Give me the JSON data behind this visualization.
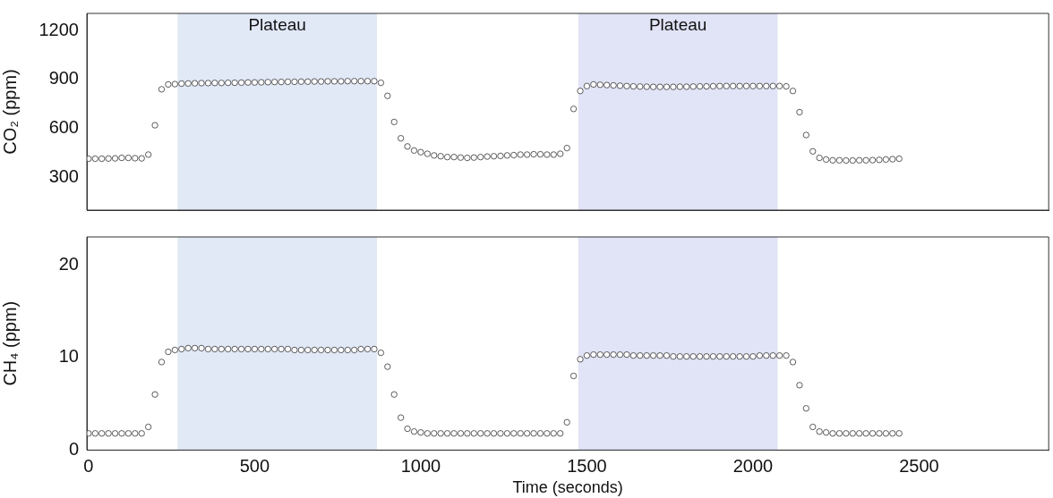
{
  "chart_data": [
    {
      "type": "scatter",
      "ylabel": "CO₂ (ppm)",
      "marker": "circle",
      "grid": false,
      "legend": false,
      "tick_labels": "y",
      "x": [
        0,
        20,
        40,
        60,
        80,
        100,
        120,
        140,
        160,
        180,
        200,
        220,
        240,
        260,
        280,
        300,
        320,
        340,
        360,
        380,
        400,
        420,
        440,
        460,
        480,
        500,
        520,
        540,
        560,
        580,
        600,
        620,
        640,
        660,
        680,
        700,
        720,
        740,
        760,
        780,
        800,
        820,
        840,
        860,
        880,
        900,
        920,
        940,
        960,
        980,
        1000,
        1020,
        1040,
        1060,
        1080,
        1100,
        1120,
        1140,
        1160,
        1180,
        1200,
        1220,
        1240,
        1260,
        1280,
        1300,
        1320,
        1340,
        1360,
        1380,
        1400,
        1420,
        1440,
        1460,
        1480,
        1500,
        1520,
        1540,
        1560,
        1580,
        1600,
        1620,
        1640,
        1660,
        1680,
        1700,
        1720,
        1740,
        1760,
        1780,
        1800,
        1820,
        1840,
        1860,
        1880,
        1900,
        1920,
        1940,
        1960,
        1980,
        2000,
        2020,
        2040,
        2060,
        2080,
        2100,
        2120,
        2140,
        2160,
        2180,
        2200,
        2220,
        2240,
        2260,
        2280,
        2300,
        2320,
        2340,
        2360,
        2380,
        2400,
        2420,
        2440
      ],
      "xlim": [
        -5,
        2890
      ],
      "xticks": [
        0,
        500,
        1000,
        1500,
        2000,
        2500
      ],
      "ylim": [
        100,
        1305
      ],
      "yticks": [
        300,
        600,
        900,
        1200
      ],
      "series": [
        {
          "color": "#333333",
          "values": [
            415,
            415,
            415,
            416,
            417,
            420,
            420,
            418,
            417,
            440,
            620,
            840,
            870,
            872,
            875,
            876,
            877,
            878,
            878,
            879,
            879,
            880,
            880,
            881,
            882,
            882,
            883,
            884,
            885,
            885,
            886,
            886,
            887,
            887,
            888,
            888,
            889,
            889,
            889,
            890,
            890,
            890,
            890,
            890,
            880,
            800,
            640,
            540,
            490,
            465,
            455,
            445,
            435,
            430,
            425,
            425,
            422,
            420,
            422,
            425,
            428,
            430,
            432,
            435,
            437,
            440,
            440,
            442,
            442,
            440,
            440,
            445,
            480,
            720,
            830,
            860,
            870,
            868,
            866,
            864,
            862,
            860,
            858,
            857,
            856,
            855,
            855,
            855,
            855,
            856,
            856,
            857,
            858,
            858,
            859,
            860,
            860,
            860,
            860,
            860,
            860,
            860,
            860,
            860,
            860,
            858,
            830,
            700,
            560,
            460,
            420,
            410,
            405,
            405,
            404,
            404,
            405,
            405,
            406,
            408,
            410,
            412,
            415
          ]
        }
      ],
      "bands": [
        {
          "axis": "x",
          "from": 268,
          "to": 868,
          "label": "Plateau",
          "color": "#e1e8f6"
        },
        {
          "axis": "x",
          "from": 1474,
          "to": 2074,
          "label": "Plateau",
          "color": "#e1e3f6"
        }
      ]
    },
    {
      "type": "scatter",
      "xlabel": "Time (seconds)",
      "ylabel": "CH₄ (ppm)",
      "marker": "circle",
      "grid": false,
      "legend": false,
      "x": [
        0,
        20,
        40,
        60,
        80,
        100,
        120,
        140,
        160,
        180,
        200,
        220,
        240,
        260,
        280,
        300,
        320,
        340,
        360,
        380,
        400,
        420,
        440,
        460,
        480,
        500,
        520,
        540,
        560,
        580,
        600,
        620,
        640,
        660,
        680,
        700,
        720,
        740,
        760,
        780,
        800,
        820,
        840,
        860,
        880,
        900,
        920,
        940,
        960,
        980,
        1000,
        1020,
        1040,
        1060,
        1080,
        1100,
        1120,
        1140,
        1160,
        1180,
        1200,
        1220,
        1240,
        1260,
        1280,
        1300,
        1320,
        1340,
        1360,
        1380,
        1400,
        1420,
        1440,
        1460,
        1480,
        1500,
        1520,
        1540,
        1560,
        1580,
        1600,
        1620,
        1640,
        1660,
        1680,
        1700,
        1720,
        1740,
        1760,
        1780,
        1800,
        1820,
        1840,
        1860,
        1880,
        1900,
        1920,
        1940,
        1960,
        1980,
        2000,
        2020,
        2040,
        2060,
        2080,
        2100,
        2120,
        2140,
        2160,
        2180,
        2200,
        2220,
        2240,
        2260,
        2280,
        2300,
        2320,
        2340,
        2360,
        2380,
        2400,
        2420,
        2440
      ],
      "xlim": [
        -5,
        2890
      ],
      "xticks": [
        0,
        500,
        1000,
        1500,
        2000,
        2500
      ],
      "ylim": [
        0,
        23
      ],
      "yticks": [
        0,
        10,
        20
      ],
      "series": [
        {
          "color": "#333333",
          "values": [
            1.8,
            1.8,
            1.8,
            1.8,
            1.8,
            1.8,
            1.8,
            1.8,
            1.8,
            2.5,
            6,
            9.5,
            10.6,
            10.8,
            10.9,
            11,
            11,
            11,
            10.9,
            10.9,
            10.9,
            10.9,
            10.9,
            10.9,
            10.9,
            10.9,
            10.9,
            10.9,
            10.9,
            10.9,
            10.9,
            10.8,
            10.8,
            10.8,
            10.8,
            10.8,
            10.8,
            10.8,
            10.8,
            10.8,
            10.8,
            10.9,
            10.9,
            10.9,
            10.5,
            9,
            6,
            3.5,
            2.3,
            2,
            1.9,
            1.8,
            1.8,
            1.8,
            1.8,
            1.8,
            1.8,
            1.8,
            1.8,
            1.8,
            1.8,
            1.8,
            1.8,
            1.8,
            1.8,
            1.8,
            1.8,
            1.8,
            1.8,
            1.8,
            1.8,
            1.8,
            3,
            8,
            9.8,
            10.2,
            10.3,
            10.3,
            10.3,
            10.3,
            10.3,
            10.3,
            10.2,
            10.2,
            10.2,
            10.2,
            10.2,
            10.2,
            10.1,
            10.1,
            10.1,
            10.1,
            10.1,
            10.1,
            10.1,
            10.1,
            10.1,
            10.1,
            10.1,
            10.1,
            10.1,
            10.2,
            10.2,
            10.2,
            10.2,
            10.2,
            9.5,
            7,
            4.5,
            2.5,
            2,
            1.9,
            1.8,
            1.8,
            1.8,
            1.8,
            1.8,
            1.8,
            1.8,
            1.8,
            1.8,
            1.8,
            1.8
          ]
        }
      ],
      "bands": [
        {
          "axis": "x",
          "from": 268,
          "to": 868,
          "color": "#e1e8f6"
        },
        {
          "axis": "x",
          "from": 1474,
          "to": 2074,
          "color": "#e1e3f6"
        }
      ]
    }
  ]
}
